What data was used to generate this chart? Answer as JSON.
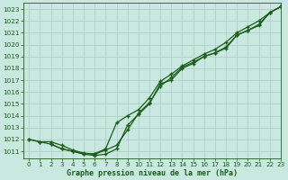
{
  "xlabel": "Graphe pression niveau de la mer (hPa)",
  "xlim": [
    -0.5,
    23
  ],
  "ylim": [
    1010.4,
    1023.5
  ],
  "yticks": [
    1011,
    1012,
    1013,
    1014,
    1015,
    1016,
    1017,
    1018,
    1019,
    1020,
    1021,
    1022,
    1023
  ],
  "xticks": [
    0,
    1,
    2,
    3,
    4,
    5,
    6,
    7,
    8,
    9,
    10,
    11,
    12,
    13,
    14,
    15,
    16,
    17,
    18,
    19,
    20,
    21,
    22,
    23
  ],
  "background_color": "#c8e8e0",
  "grid_color": "#b0cfc8",
  "line_color": "#1a5e1a",
  "series1_x": [
    0,
    1,
    2,
    3,
    4,
    5,
    6,
    7,
    8,
    9,
    10,
    11,
    12,
    13,
    14,
    15,
    16,
    17,
    18,
    19,
    20,
    21,
    22,
    23
  ],
  "series1_y": [
    1012.0,
    1011.8,
    1011.8,
    1011.5,
    1011.1,
    1010.85,
    1010.75,
    1011.1,
    1011.5,
    1012.8,
    1014.2,
    1015.1,
    1016.5,
    1017.2,
    1018.1,
    1018.5,
    1019.0,
    1019.3,
    1019.8,
    1020.8,
    1021.2,
    1021.6,
    1022.7,
    1023.2
  ],
  "series2_x": [
    0,
    1,
    2,
    3,
    4,
    5,
    6,
    7,
    8,
    9,
    10,
    11,
    12,
    13,
    14,
    15,
    16,
    17,
    18,
    19,
    20,
    21,
    22,
    23
  ],
  "series2_y": [
    1012.0,
    1011.8,
    1011.6,
    1011.2,
    1011.0,
    1010.8,
    1010.8,
    1011.2,
    1013.4,
    1014.0,
    1014.5,
    1015.5,
    1016.9,
    1017.5,
    1018.2,
    1018.7,
    1019.2,
    1019.6,
    1020.2,
    1021.0,
    1021.5,
    1022.0,
    1022.7,
    1023.2
  ],
  "series3_x": [
    2,
    3,
    4,
    5,
    6,
    7,
    8,
    9,
    10,
    11,
    12,
    13,
    14,
    15,
    16,
    17,
    18,
    19,
    20,
    21,
    22,
    23
  ],
  "series3_y": [
    1011.6,
    1011.2,
    1011.0,
    1010.75,
    1010.65,
    1010.75,
    1011.2,
    1013.2,
    1014.1,
    1015.0,
    1016.7,
    1017.0,
    1018.0,
    1018.4,
    1019.0,
    1019.3,
    1019.7,
    1020.8,
    1021.2,
    1021.7,
    1022.7,
    1023.2
  ],
  "marker": "+",
  "markersize": 3.5,
  "linewidth": 0.9,
  "tick_fontsize": 5.2,
  "label_fontsize": 6.0,
  "label_fontweight": "bold"
}
